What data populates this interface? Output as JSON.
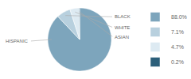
{
  "chart_data": {
    "type": "pie",
    "categories": [
      "HISPANIC",
      "BLACK",
      "WHITE",
      "ASIAN"
    ],
    "values": [
      88.0,
      7.1,
      4.7,
      0.2
    ],
    "value_labels": [
      "88.0%",
      "7.1%",
      "4.7%",
      "0.2%"
    ],
    "colors": [
      "#7da5bc",
      "#b8d0de",
      "#ddeaf2",
      "#2c5f7a"
    ],
    "legend": "right"
  }
}
